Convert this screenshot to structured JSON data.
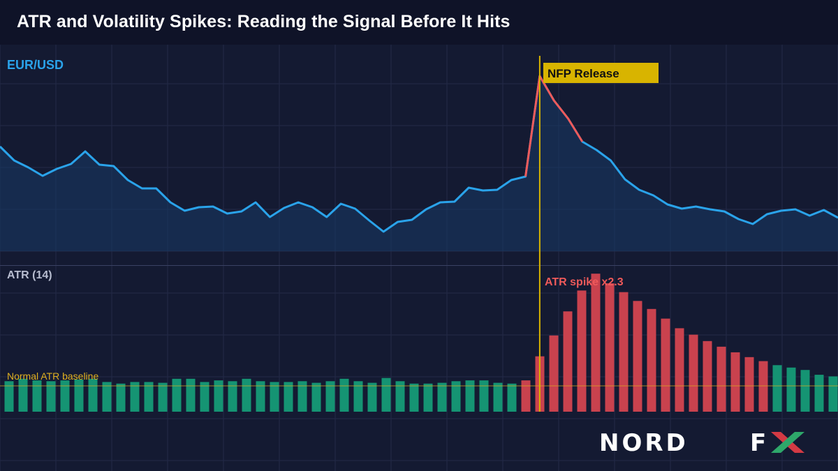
{
  "header": {
    "title": "ATR and Volatility Spikes: Reading the Signal Before It Hits"
  },
  "brand": {
    "logo_text": "NORD FX"
  },
  "colors": {
    "background": "#141a32",
    "header_bg": "#0f1328",
    "price_line": "#2aa3ea",
    "spike_line": "#ef5a5a",
    "event_marker": "#d8b400",
    "atr_normal": "#159473",
    "atr_spike": "#c9424e",
    "baseline": "#e0b020",
    "grid": "#232a48"
  },
  "chart_data": [
    {
      "type": "line",
      "series_label": "EUR/USD",
      "y_visible": false,
      "grid": true,
      "x": [
        0,
        1,
        2,
        3,
        4,
        5,
        6,
        7,
        8,
        9,
        10,
        11,
        12,
        13,
        14,
        15,
        16,
        17,
        18,
        19,
        20,
        21,
        22,
        23,
        24,
        25,
        26,
        27,
        28,
        29,
        30,
        31,
        32,
        33,
        34,
        35,
        36,
        37,
        38,
        39,
        40,
        41,
        42,
        43,
        44,
        45,
        46,
        47,
        48,
        49,
        50,
        51,
        52,
        53,
        54,
        55,
        56,
        57,
        58,
        59
      ],
      "values": [
        210,
        230,
        240,
        252,
        242,
        235,
        217,
        236,
        238,
        258,
        270,
        270,
        290,
        302,
        297,
        296,
        306,
        303,
        290,
        311,
        298,
        290,
        297,
        311,
        292,
        299,
        316,
        332,
        318,
        315,
        300,
        290,
        289,
        269,
        273,
        272,
        258,
        253,
        109,
        144,
        170,
        203,
        215,
        230,
        257,
        272,
        280,
        293,
        299,
        296,
        300,
        303,
        314,
        321,
        307,
        302,
        300,
        309,
        301,
        312
      ],
      "highlight_range": [
        37,
        41
      ],
      "annotation": {
        "text": "NFP Release",
        "at_index": 38
      }
    },
    {
      "type": "bar",
      "series_label": "ATR (14)",
      "y_visible": false,
      "values": [
        38,
        41,
        39,
        38,
        39,
        40,
        41,
        37,
        35,
        37,
        37,
        36,
        41,
        41,
        37,
        39,
        38,
        41,
        38,
        37,
        37,
        38,
        36,
        38,
        41,
        38,
        36,
        42,
        38,
        35,
        35,
        36,
        38,
        39,
        39,
        36,
        35,
        39,
        69,
        95,
        125,
        151,
        172,
        160,
        149,
        138,
        128,
        116,
        104,
        96,
        88,
        81,
        74,
        68,
        63,
        58,
        55,
        52,
        46,
        44
      ],
      "spike_range": [
        37,
        54
      ],
      "baseline_label": "Normal ATR baseline",
      "spike_label": "ATR spike x2.3"
    }
  ]
}
